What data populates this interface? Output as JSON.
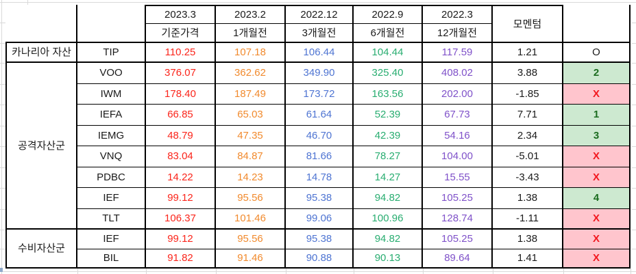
{
  "app": {
    "background": "#FFFFFF",
    "gridline_color": "#D9D9D9",
    "table_border_color": "#000000",
    "selection_speck_color": "#8FAACC"
  },
  "table": {
    "header": {
      "corner_label": "",
      "ticker_header_label": "",
      "dates": [
        "2023.3",
        "2023.2",
        "2022.12",
        "2022.9",
        "2022.3"
      ],
      "periods": [
        "기준가격",
        "1개월전",
        "3개월전",
        "6개월전",
        "12개월전"
      ],
      "momentum_label": "모멘텀",
      "signal_header_label": ""
    },
    "price_colors": [
      "#FB241A",
      "#F18A2D",
      "#4E74D2",
      "#28AD70",
      "#7F51C9"
    ],
    "text_color": "#1A1A1A",
    "signal_styles": {
      "good": {
        "bg": "#CDE9D0",
        "color": "#1B6C1F",
        "bold": true
      },
      "bad": {
        "bg": "#FFC5CD",
        "color": "#F2181F",
        "bold": true
      },
      "neutral": {
        "bg": "#FFFFFF",
        "color": "#1A1A1A",
        "bold": false
      }
    },
    "groups": [
      {
        "label": "카나리아 자산",
        "rows": [
          {
            "ticker": "TIP",
            "prices": [
              "110.25",
              "107.18",
              "106.44",
              "104.44",
              "117.59"
            ],
            "momentum": "1.21",
            "signal": "O",
            "signal_type": "neutral"
          }
        ]
      },
      {
        "label": "공격자산군",
        "rows": [
          {
            "ticker": "VOO",
            "prices": [
              "376.07",
              "362.62",
              "349.90",
              "325.40",
              "408.02"
            ],
            "momentum": "3.88",
            "signal": "2",
            "signal_type": "good"
          },
          {
            "ticker": "IWM",
            "prices": [
              "178.40",
              "187.49",
              "173.72",
              "163.56",
              "202.00"
            ],
            "momentum": "-1.85",
            "signal": "X",
            "signal_type": "bad"
          },
          {
            "ticker": "IEFA",
            "prices": [
              "66.85",
              "65.03",
              "61.64",
              "52.39",
              "67.73"
            ],
            "momentum": "7.71",
            "signal": "1",
            "signal_type": "good"
          },
          {
            "ticker": "IEMG",
            "prices": [
              "48.79",
              "47.35",
              "46.70",
              "42.39",
              "54.16"
            ],
            "momentum": "2.34",
            "signal": "3",
            "signal_type": "good"
          },
          {
            "ticker": "VNQ",
            "prices": [
              "83.04",
              "84.87",
              "81.66",
              "78.27",
              "104.00"
            ],
            "momentum": "-5.01",
            "signal": "X",
            "signal_type": "bad"
          },
          {
            "ticker": "PDBC",
            "prices": [
              "14.22",
              "14.23",
              "14.78",
              "14.27",
              "15.55"
            ],
            "momentum": "-3.43",
            "signal": "X",
            "signal_type": "bad"
          },
          {
            "ticker": "IEF",
            "prices": [
              "99.12",
              "95.56",
              "95.38",
              "94.82",
              "105.25"
            ],
            "momentum": "1.38",
            "signal": "4",
            "signal_type": "good"
          },
          {
            "ticker": "TLT",
            "prices": [
              "106.37",
              "101.46",
              "99.06",
              "100.96",
              "128.74"
            ],
            "momentum": "-1.11",
            "signal": "X",
            "signal_type": "bad"
          }
        ]
      },
      {
        "label": "수비자산군",
        "rows": [
          {
            "ticker": "IEF",
            "prices": [
              "99.12",
              "95.56",
              "95.38",
              "94.82",
              "105.25"
            ],
            "momentum": "1.38",
            "signal": "X",
            "signal_type": "bad"
          },
          {
            "ticker": "BIL",
            "prices": [
              "91.82",
              "91.46",
              "90.88",
              "90.13",
              "89.64"
            ],
            "momentum": "1.41",
            "signal": "X",
            "signal_type": "bad"
          }
        ]
      }
    ]
  }
}
